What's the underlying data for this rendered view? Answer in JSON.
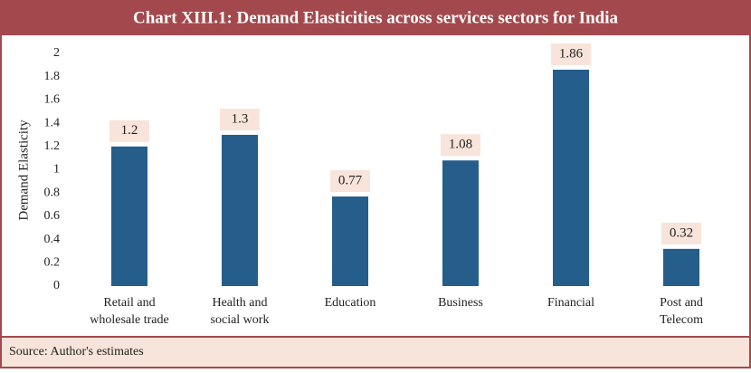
{
  "chart_data": {
    "type": "bar",
    "title": "Chart XIII.1: Demand Elasticities across services sectors for India",
    "y_label": "Demand Elasticity",
    "categories": [
      [
        "Retail and",
        "wholesale trade"
      ],
      [
        "Health and",
        "social work"
      ],
      [
        "Education"
      ],
      [
        "Business"
      ],
      [
        "Financial"
      ],
      [
        "Post and",
        "Telecom"
      ]
    ],
    "values": [
      1.2,
      1.3,
      0.77,
      1.08,
      1.86,
      0.32
    ],
    "color": "#255e8a",
    "ylim": [
      0,
      2
    ],
    "yticks": [
      0,
      0.2,
      0.4,
      0.6,
      0.8,
      1,
      1.2,
      1.4,
      1.6,
      1.8,
      2
    ],
    "grid": false,
    "source": "Source: Author's estimates"
  }
}
